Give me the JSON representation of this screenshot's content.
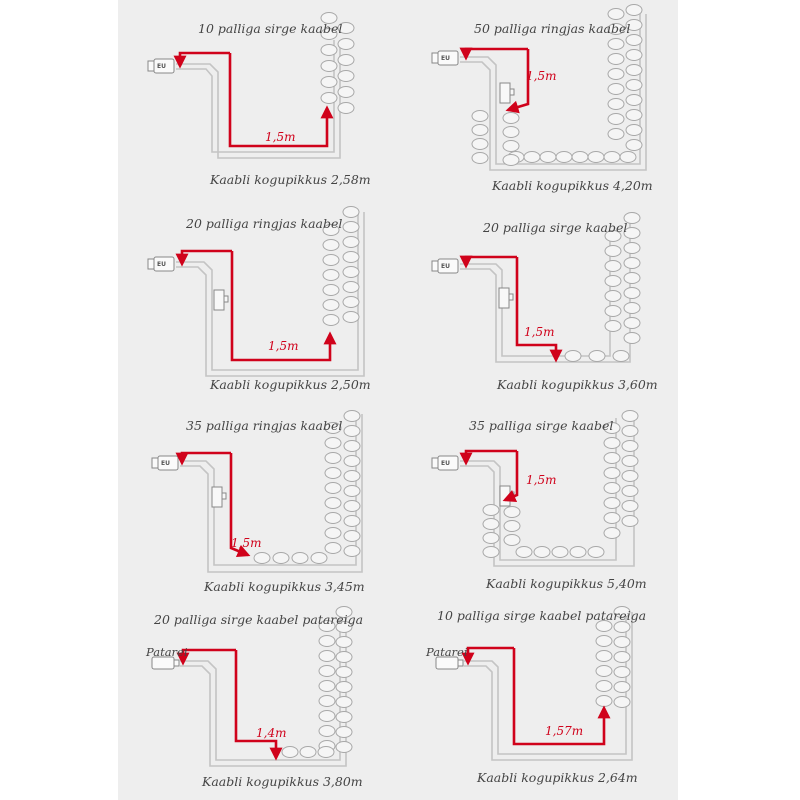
{
  "colors": {
    "accent": "#d0021b",
    "wire": "#c4c4c4",
    "text": "#444444",
    "background": "#eeeeee"
  },
  "plug_label": "EU",
  "battery_label": "Patarei",
  "panels": [
    {
      "title": "10 palliga sirge kaabel",
      "segment": "1,5m",
      "total": "Kaabli kogupikkus 2,58m"
    },
    {
      "title": "50 palliga ringjas kaabel",
      "segment": "1,5m",
      "total": "Kaabli kogupikkus 4,20m"
    },
    {
      "title": "20 palliga ringjas kaabel",
      "segment": "1,5m",
      "total": "Kaabli kogupikkus 2,50m"
    },
    {
      "title": "20 palliga sirge kaabel",
      "segment": "1,5m",
      "total": "Kaabli kogupikkus 3,60m"
    },
    {
      "title": "35 palliga ringjas kaabel",
      "segment": "1,5m",
      "total": "Kaabli kogupikkus 3,45m"
    },
    {
      "title": "35 palliga sirge kaabel",
      "segment": "1,5m",
      "total": "Kaabli kogupikkus 5,40m"
    },
    {
      "title": "20 palliga sirge kaabel patareiga",
      "segment": "1,4m",
      "total": "Kaabli kogupikkus 3,80m"
    },
    {
      "title": "10 palliga sirge kaabel patareiga",
      "segment": "1,57m",
      "total": "Kaabli kogupikkus 2,64m"
    }
  ]
}
